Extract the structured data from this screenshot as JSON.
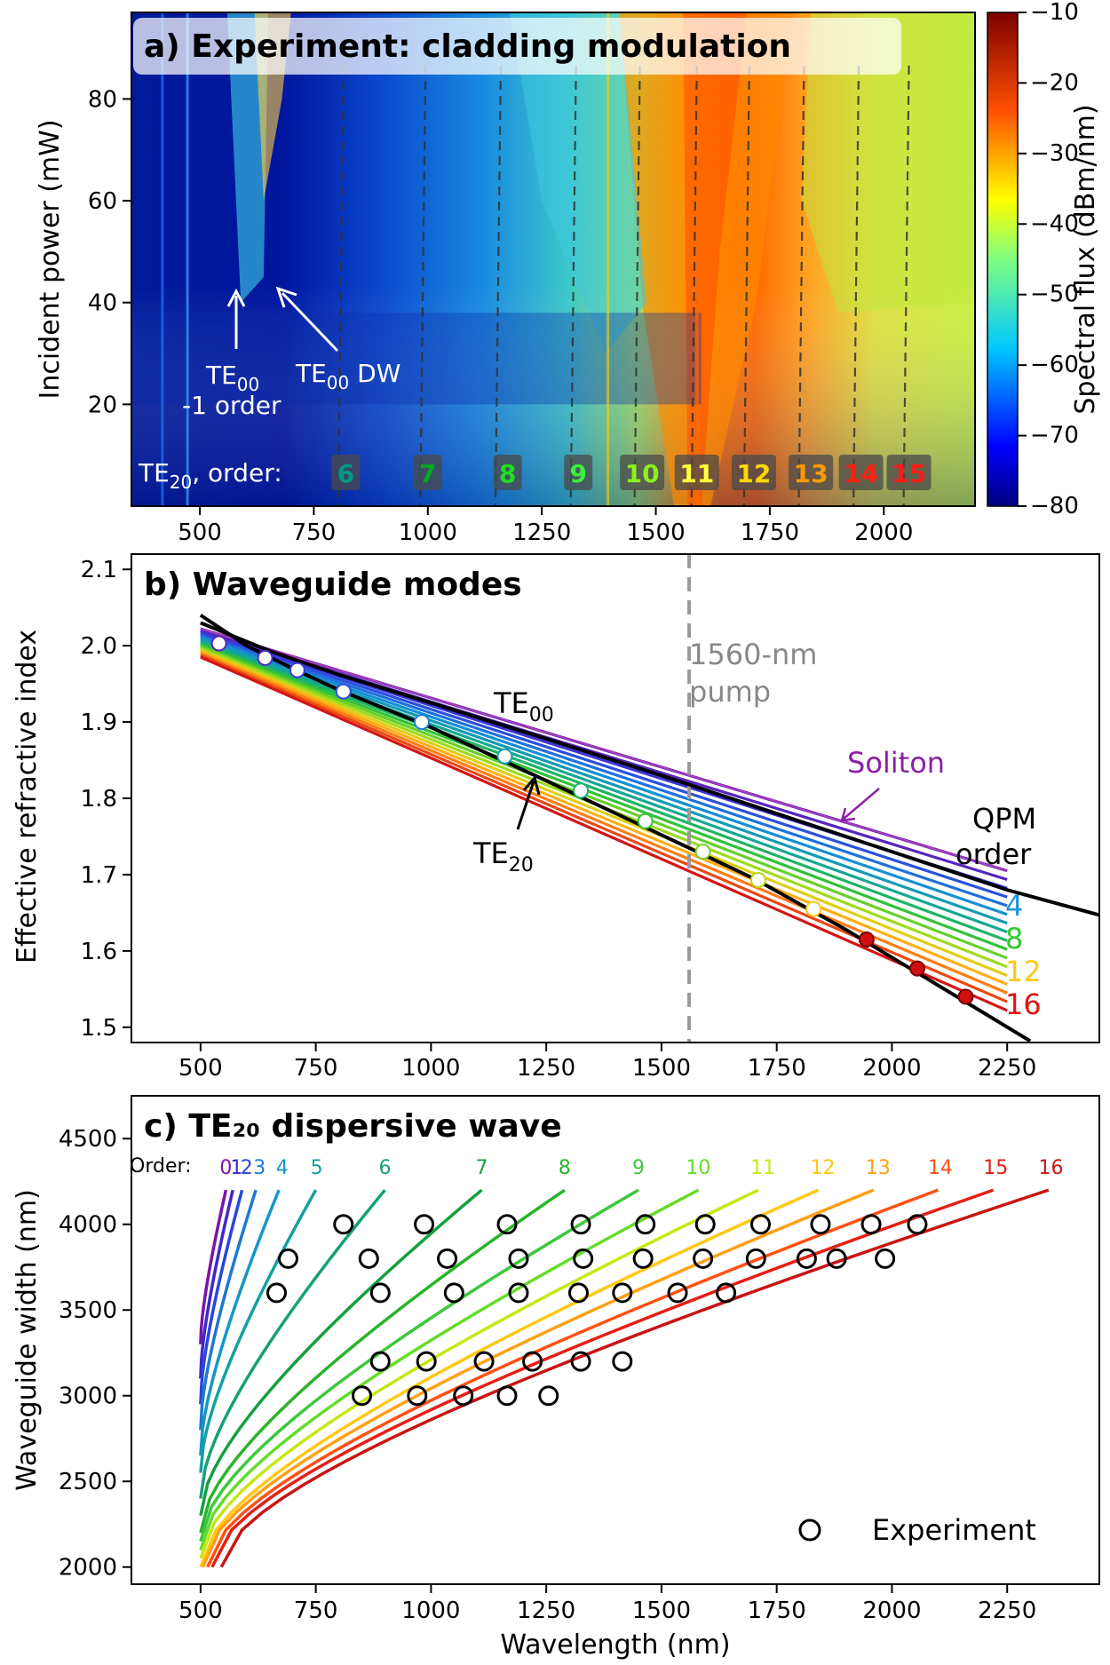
{
  "chart_data": [
    {
      "type": "heatmap",
      "title": "a) Experiment: cladding modulation",
      "xlabel": "",
      "ylabel": "Incident power (mW)",
      "xlim": [
        350,
        2200
      ],
      "ylim": [
        0,
        97
      ],
      "xticks": [
        500,
        750,
        1000,
        1250,
        1500,
        1750,
        2000
      ],
      "yticks": [
        20,
        40,
        60,
        80
      ],
      "colorbar": {
        "label": "Spectral flux (dBm/nm)",
        "range": [
          -80,
          -10
        ],
        "ticks": [
          -10,
          -20,
          -30,
          -40,
          -50,
          -60,
          -70,
          -80
        ]
      },
      "dashed_lines_x": [
        815,
        995,
        1160,
        1325,
        1465,
        1590,
        1705,
        1825,
        1945,
        2055
      ],
      "annotations": [
        {
          "label": "TE",
          "sub": "00",
          "line2": "-1 order"
        },
        {
          "label": "TE",
          "sub": "00",
          "suffix": " DW"
        }
      ],
      "order_legend": {
        "prefix": "TE",
        "sub": "20",
        "suffix": ", order:",
        "orders": [
          {
            "n": "6",
            "x": 820,
            "color": "#009a82"
          },
          {
            "n": "7",
            "x": 1000,
            "color": "#00aa1e"
          },
          {
            "n": "8",
            "x": 1175,
            "color": "#1ee01e"
          },
          {
            "n": "9",
            "x": 1330,
            "color": "#3cf03c"
          },
          {
            "n": "10",
            "x": 1470,
            "color": "#8cf01e"
          },
          {
            "n": "11",
            "x": 1590,
            "color": "#ffff3c"
          },
          {
            "n": "12",
            "x": 1715,
            "color": "#ffd700"
          },
          {
            "n": "13",
            "x": 1840,
            "color": "#ff9a00"
          },
          {
            "n": "14",
            "x": 1950,
            "color": "#ff2010"
          },
          {
            "n": "15",
            "x": 2055,
            "color": "#ff1a1a"
          }
        ]
      }
    },
    {
      "type": "line",
      "title": "b) Waveguide modes",
      "xlabel": "",
      "ylabel": "Effective refractive index",
      "xlim": [
        350,
        2450
      ],
      "ylim": [
        1.48,
        2.12
      ],
      "xticks": [
        500,
        750,
        1000,
        1250,
        1500,
        1750,
        2000,
        2250
      ],
      "yticks": [
        1.5,
        1.6,
        1.7,
        1.8,
        1.9,
        2.0,
        2.1
      ],
      "pump": {
        "x": 1560,
        "label_line1": "1560-nm",
        "label_line2": "pump"
      },
      "labels": {
        "te00": {
          "base": "TE",
          "sub": "00"
        },
        "te20": {
          "base": "TE",
          "sub": "20"
        },
        "soliton": "Soliton",
        "qpm_line1": "QPM",
        "qpm_line2": "order",
        "orders": [
          {
            "n": "4",
            "color": "#1e96dc"
          },
          {
            "n": "8",
            "color": "#32c832"
          },
          {
            "n": "12",
            "color": "#ffc814"
          },
          {
            "n": "16",
            "color": "#dc1414"
          }
        ]
      },
      "series": [
        {
          "name": "TE00",
          "x": [
            500,
            650,
            800,
            1000,
            1250,
            1500,
            1750,
            2000,
            2250,
            2450
          ],
          "y": [
            2.03,
            1.993,
            1.962,
            1.925,
            1.878,
            1.83,
            1.78,
            1.73,
            1.68,
            1.647
          ]
        },
        {
          "name": "TE20",
          "x": [
            500,
            600,
            700,
            800,
            1000,
            1250,
            1500,
            1700,
            1900,
            2100,
            2300
          ],
          "y": [
            2.04,
            2.0,
            1.97,
            1.942,
            1.893,
            1.823,
            1.752,
            1.695,
            1.628,
            1.555,
            1.482
          ]
        },
        {
          "name": "Soliton",
          "x": [
            500,
            2250
          ],
          "y": [
            2.022,
            1.705
          ]
        }
      ],
      "qpm_fan": {
        "count": 17,
        "x": [
          500,
          2250
        ],
        "top": [
          2.022,
          1.705
        ],
        "bottom": [
          1.985,
          1.522
        ]
      },
      "markers": [
        {
          "x": 540,
          "y": 2.003
        },
        {
          "x": 640,
          "y": 1.984
        },
        {
          "x": 710,
          "y": 1.968
        },
        {
          "x": 810,
          "y": 1.94
        },
        {
          "x": 980,
          "y": 1.9
        },
        {
          "x": 1160,
          "y": 1.855
        },
        {
          "x": 1325,
          "y": 1.81
        },
        {
          "x": 1465,
          "y": 1.77
        },
        {
          "x": 1590,
          "y": 1.73
        },
        {
          "x": 1710,
          "y": 1.693
        },
        {
          "x": 1830,
          "y": 1.655
        },
        {
          "x": 1945,
          "y": 1.615
        },
        {
          "x": 2055,
          "y": 1.577
        },
        {
          "x": 2160,
          "y": 1.54
        }
      ]
    },
    {
      "type": "line",
      "title": "c) TE₂₀ dispersive wave",
      "xlabel": "Wavelength (nm)",
      "ylabel": "Waveguide width (nm)",
      "xlim": [
        350,
        2450
      ],
      "ylim": [
        1900,
        4750
      ],
      "xticks": [
        500,
        750,
        1000,
        1250,
        1500,
        1750,
        2000,
        2250
      ],
      "yticks": [
        2000,
        2500,
        3000,
        3500,
        4000,
        4500
      ],
      "order_prefix": "Order:",
      "legend": {
        "marker_label": "Experiment",
        "placement": "lower-right"
      },
      "series": [
        {
          "name": "0",
          "x_start": 500,
          "y_start": 3300,
          "x_end": 555,
          "y_end": 4200,
          "label_x": 555,
          "color": "#7a14a8"
        },
        {
          "name": "1",
          "x_start": 500,
          "y_start": 3100,
          "x_end": 570,
          "y_end": 4200,
          "label_x": 578,
          "color": "#3c28c8"
        },
        {
          "name": "2",
          "x_start": 500,
          "y_start": 2950,
          "x_end": 590,
          "y_end": 4200,
          "label_x": 600,
          "color": "#2846dc"
        },
        {
          "name": "3",
          "x_start": 500,
          "y_start": 2800,
          "x_end": 620,
          "y_end": 4200,
          "label_x": 628,
          "color": "#1e78d2"
        },
        {
          "name": "4",
          "x_start": 500,
          "y_start": 2650,
          "x_end": 670,
          "y_end": 4200,
          "label_x": 677,
          "color": "#1496c8"
        },
        {
          "name": "5",
          "x_start": 500,
          "y_start": 2550,
          "x_end": 750,
          "y_end": 4200,
          "label_x": 752,
          "color": "#14a0a0"
        },
        {
          "name": "6",
          "x_start": 500,
          "y_start": 2400,
          "x_end": 900,
          "y_end": 4200,
          "label_x": 900,
          "color": "#14a078"
        },
        {
          "name": "7",
          "x_start": 500,
          "y_start": 2300,
          "x_end": 1110,
          "y_end": 4200,
          "label_x": 1110,
          "color": "#14a03c"
        },
        {
          "name": "8",
          "x_start": 500,
          "y_start": 2200,
          "x_end": 1290,
          "y_end": 4200,
          "label_x": 1290,
          "color": "#28b428"
        },
        {
          "name": "9",
          "x_start": 500,
          "y_start": 2150,
          "x_end": 1450,
          "y_end": 4200,
          "label_x": 1450,
          "color": "#3cc83c"
        },
        {
          "name": "10",
          "x_start": 500,
          "y_start": 2100,
          "x_end": 1580,
          "y_end": 4200,
          "label_x": 1580,
          "color": "#64dc28"
        },
        {
          "name": "11",
          "x_start": 500,
          "y_start": 2050,
          "x_end": 1710,
          "y_end": 4200,
          "label_x": 1720,
          "color": "#c8e614"
        },
        {
          "name": "12",
          "x_start": 500,
          "y_start": 2000,
          "x_end": 1840,
          "y_end": 4200,
          "label_x": 1850,
          "color": "#ffc814"
        },
        {
          "name": "13",
          "x_start": 505,
          "y_start": 2000,
          "x_end": 1960,
          "y_end": 4200,
          "label_x": 1970,
          "color": "#ffa014"
        },
        {
          "name": "14",
          "x_start": 515,
          "y_start": 2000,
          "x_end": 2100,
          "y_end": 4200,
          "label_x": 2105,
          "color": "#ff5014"
        },
        {
          "name": "15",
          "x_start": 525,
          "y_start": 2000,
          "x_end": 2220,
          "y_end": 4200,
          "label_x": 2225,
          "color": "#e61e14"
        },
        {
          "name": "16",
          "x_start": 545,
          "y_start": 2000,
          "x_end": 2340,
          "y_end": 4200,
          "label_x": 2345,
          "color": "#c81414"
        }
      ],
      "experiment_points": [
        {
          "x": 810,
          "y": 4000
        },
        {
          "x": 985,
          "y": 4000
        },
        {
          "x": 1165,
          "y": 4000
        },
        {
          "x": 1325,
          "y": 4000
        },
        {
          "x": 1465,
          "y": 4000
        },
        {
          "x": 1595,
          "y": 4000
        },
        {
          "x": 1715,
          "y": 4000
        },
        {
          "x": 1845,
          "y": 4000
        },
        {
          "x": 1955,
          "y": 4000
        },
        {
          "x": 2055,
          "y": 4000
        },
        {
          "x": 690,
          "y": 3800
        },
        {
          "x": 865,
          "y": 3800
        },
        {
          "x": 1035,
          "y": 3800
        },
        {
          "x": 1190,
          "y": 3800
        },
        {
          "x": 1330,
          "y": 3800
        },
        {
          "x": 1460,
          "y": 3800
        },
        {
          "x": 1590,
          "y": 3800
        },
        {
          "x": 1705,
          "y": 3800
        },
        {
          "x": 1815,
          "y": 3800
        },
        {
          "x": 1880,
          "y": 3800
        },
        {
          "x": 1985,
          "y": 3800
        },
        {
          "x": 665,
          "y": 3600
        },
        {
          "x": 890,
          "y": 3600
        },
        {
          "x": 1050,
          "y": 3600
        },
        {
          "x": 1190,
          "y": 3600
        },
        {
          "x": 1320,
          "y": 3600
        },
        {
          "x": 1415,
          "y": 3600
        },
        {
          "x": 1535,
          "y": 3600
        },
        {
          "x": 1640,
          "y": 3600
        },
        {
          "x": 890,
          "y": 3200
        },
        {
          "x": 990,
          "y": 3200
        },
        {
          "x": 1115,
          "y": 3200
        },
        {
          "x": 1220,
          "y": 3200
        },
        {
          "x": 1325,
          "y": 3200
        },
        {
          "x": 1415,
          "y": 3200
        },
        {
          "x": 850,
          "y": 3000
        },
        {
          "x": 970,
          "y": 3000
        },
        {
          "x": 1070,
          "y": 3000
        },
        {
          "x": 1165,
          "y": 3000
        },
        {
          "x": 1255,
          "y": 3000
        }
      ]
    }
  ]
}
